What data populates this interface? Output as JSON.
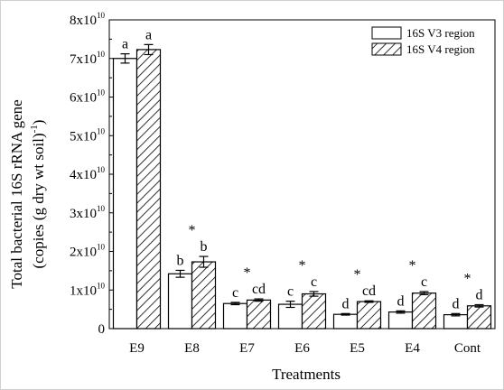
{
  "chart_data": {
    "type": "bar",
    "xlabel": "Treatments",
    "ylabel_line1": "Total bacterial 16S rRNA gene",
    "ylabel_line2_parts": [
      "(copies (g dry wt soil)",
      "-1",
      ")"
    ],
    "y_exponent": "10",
    "ylim": [
      0,
      80000000000
    ],
    "yticks": [
      {
        "value": 0,
        "mantissa": "0",
        "exp": ""
      },
      {
        "value": 10000000000,
        "mantissa": "1x10",
        "exp": "10"
      },
      {
        "value": 20000000000,
        "mantissa": "2x10",
        "exp": "10"
      },
      {
        "value": 30000000000,
        "mantissa": "3x10",
        "exp": "10"
      },
      {
        "value": 40000000000,
        "mantissa": "4x10",
        "exp": "10"
      },
      {
        "value": 50000000000,
        "mantissa": "5x10",
        "exp": "10"
      },
      {
        "value": 60000000000,
        "mantissa": "6x10",
        "exp": "10"
      },
      {
        "value": 70000000000,
        "mantissa": "7x10",
        "exp": "10"
      },
      {
        "value": 80000000000,
        "mantissa": "8x10",
        "exp": "10"
      }
    ],
    "categories": [
      "E9",
      "E8",
      "E7",
      "E6",
      "E5",
      "E4",
      "Cont"
    ],
    "series": [
      {
        "name": "16S V3 region",
        "fill": "plain",
        "values": [
          70000000000,
          14200000000,
          6500000000,
          6300000000,
          3700000000,
          4300000000,
          3600000000
        ],
        "errors": [
          1200000000,
          900000000,
          300000000,
          800000000,
          200000000,
          300000000,
          300000000
        ],
        "letters": [
          "a",
          "b",
          "c",
          "c",
          "d",
          "d",
          "d"
        ]
      },
      {
        "name": "16S V4 region",
        "fill": "hatched",
        "values": [
          72300000000,
          17300000000,
          7400000000,
          9000000000,
          7000000000,
          9200000000,
          5900000000
        ],
        "errors": [
          1300000000,
          1400000000,
          300000000,
          600000000,
          200000000,
          400000000,
          300000000
        ],
        "letters": [
          "a",
          "b",
          "cd",
          "c",
          "cd",
          "c",
          "d"
        ]
      }
    ],
    "significance": [
      "",
      "*",
      "*",
      "*",
      "*",
      "*",
      "*"
    ],
    "legend_position": "top-right",
    "colors": {
      "bar_fill": "#ffffff",
      "bar_stroke": "#000000",
      "hatch": "#000000"
    }
  }
}
